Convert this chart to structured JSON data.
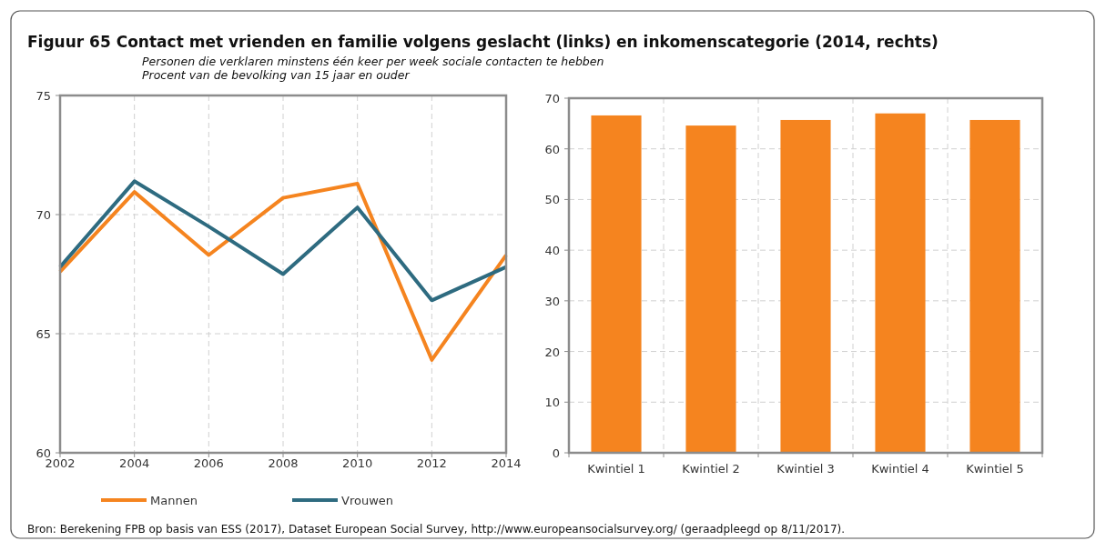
{
  "chart_data": [
    {
      "type": "line",
      "title": "Figuur 65    Contact met vrienden en familie volgens geslacht (links) en inkomenscategorie (2014, rechts)",
      "subtitle": "Personen die verklaren minstens één keer per week sociale contacten te hebben\nProcent van de bevolking van 15 jaar en ouder",
      "x": [
        2002,
        2004,
        2006,
        2008,
        2010,
        2012,
        2014
      ],
      "xlim": [
        2002,
        2014
      ],
      "xticks": [
        2002,
        2004,
        2006,
        2008,
        2010,
        2012,
        2014
      ],
      "ylim": [
        60,
        75
      ],
      "yticks": [
        60,
        65,
        70,
        75
      ],
      "grid": true,
      "legend": "bottom",
      "line_style": "solid",
      "annotations": [
        "Bron: Berekening FPB op basis van ESS (2017), Dataset European Social Survey, http://www.europeansocialsurvey.org/ (geraadpleegd op 8/11/2017)."
      ],
      "series": [
        {
          "name": "Mannen",
          "color": "#f5841f",
          "values": [
            67.6,
            70.95,
            68.3,
            70.7,
            71.3,
            63.9,
            68.3
          ]
        },
        {
          "name": "Vrouwen",
          "color": "#2e6b80",
          "values": [
            67.8,
            71.4,
            69.5,
            67.5,
            70.3,
            66.4,
            67.8
          ]
        }
      ]
    },
    {
      "type": "bar",
      "categories": [
        "Kwintiel 1",
        "Kwintiel 2",
        "Kwintiel 3",
        "Kwintiel 4",
        "Kwintiel 5"
      ],
      "values": [
        66.6,
        64.6,
        65.7,
        67.0,
        65.7
      ],
      "color": "#f5841f",
      "ylim": [
        0,
        70
      ],
      "yticks": [
        0,
        10,
        20,
        30,
        40,
        50,
        60,
        70
      ],
      "grid": true
    }
  ]
}
